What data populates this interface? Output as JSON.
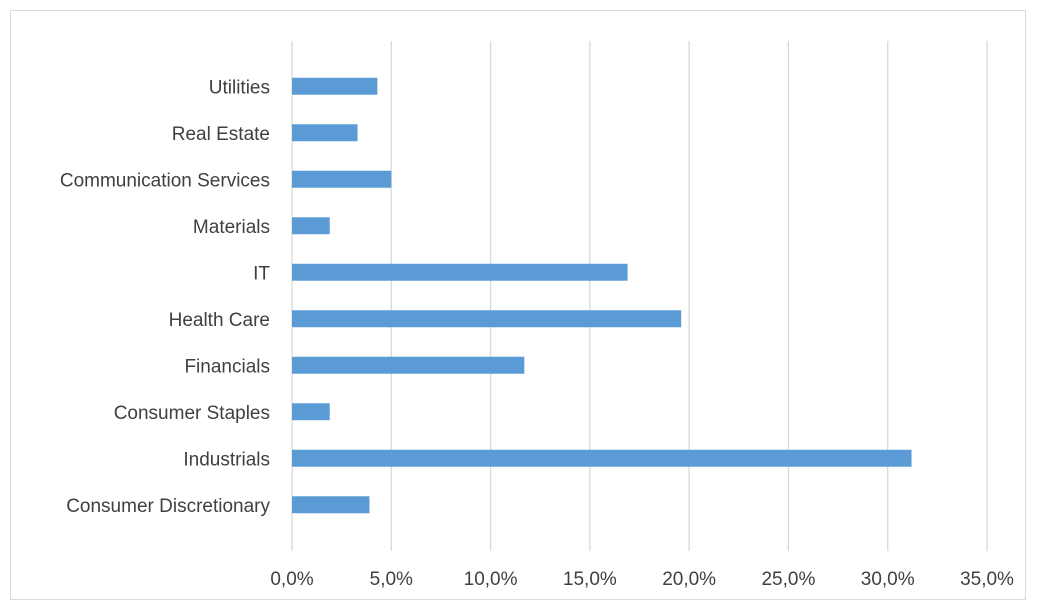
{
  "chart_data": {
    "type": "bar",
    "orientation": "horizontal",
    "title": "",
    "xlabel": "",
    "ylabel": "",
    "categories": [
      "Consumer Discretionary",
      "Industrials",
      "Consumer Staples",
      "Financials",
      "Health Care",
      "IT",
      "Materials",
      "Communication Services",
      "Real Estate",
      "Utilities"
    ],
    "values": [
      3.9,
      31.2,
      1.9,
      11.7,
      19.6,
      16.9,
      1.9,
      5.0,
      3.3,
      4.3
    ],
    "xlim": [
      0,
      35
    ],
    "xticks": [
      0,
      5,
      10,
      15,
      20,
      25,
      30,
      35
    ],
    "xtick_labels": [
      "0,0%",
      "5,0%",
      "10,0%",
      "15,0%",
      "20,0%",
      "25,0%",
      "30,0%",
      "35,0%"
    ],
    "grid": "vertical",
    "legend": "none",
    "colors": {
      "bar": "#5b9bd5",
      "grid": "#d9d9d9",
      "text": "#404040",
      "border": "#d9d9d9"
    }
  }
}
